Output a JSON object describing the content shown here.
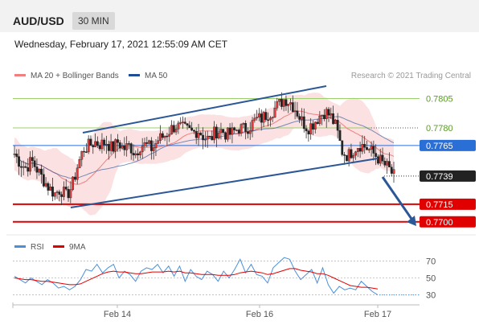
{
  "header": {
    "pair": "AUD/USD",
    "timeframe": "30 MIN"
  },
  "timestamp": "Wednesday, February 17, 2021 12:55:09 AM CET",
  "colors": {
    "candle_up": "#e33b3b",
    "ma20": "#f08080",
    "bollinger_fill": "#fadcdc",
    "ma50": "#1f4e99",
    "trend": "#2b5797",
    "support": "#e00000",
    "current": "#222222",
    "rsi": "#4a90d9",
    "rsi_ma": "#e00000",
    "grid_green": "#9bcf6b"
  },
  "chart_data": {
    "type": "candlestick",
    "title": "",
    "legend": {
      "ma20": "MA 20 + Bollinger Bands",
      "ma50": "MA 50",
      "credit": "Research © 2021 Trading Central"
    },
    "ylim": [
      0.7693,
      0.7817
    ],
    "x_ticks": [
      "Feb 14",
      "Feb 16",
      "Feb 17"
    ],
    "levels": [
      {
        "label": "0.7805",
        "value": 0.7805,
        "kind": "resistance"
      },
      {
        "label": "0.7780",
        "value": 0.778,
        "kind": "resistance"
      },
      {
        "label": "0.7765",
        "value": 0.7765,
        "kind": "pivot"
      },
      {
        "label": "0.7739",
        "value": 0.7739,
        "kind": "current"
      },
      {
        "label": "0.7715",
        "value": 0.7715,
        "kind": "support"
      },
      {
        "label": "0.7700",
        "value": 0.77,
        "kind": "support"
      }
    ],
    "close_path": [
      0.7758,
      0.775,
      0.7746,
      0.7752,
      0.7744,
      0.7736,
      0.7729,
      0.7724,
      0.7728,
      0.7722,
      0.773,
      0.7748,
      0.7762,
      0.7765,
      0.7768,
      0.7766,
      0.7768,
      0.7762,
      0.7768,
      0.7762,
      0.7765,
      0.7758,
      0.7766,
      0.7765,
      0.7762,
      0.777,
      0.7773,
      0.7778,
      0.7782,
      0.778,
      0.7778,
      0.7776,
      0.7778,
      0.7772,
      0.777,
      0.7777,
      0.7778,
      0.7774,
      0.7776,
      0.778,
      0.7779,
      0.7782,
      0.7787,
      0.7788,
      0.7792,
      0.7795,
      0.78,
      0.7805,
      0.7802,
      0.7795,
      0.7786,
      0.778,
      0.7784,
      0.779,
      0.7794,
      0.779,
      0.778,
      0.776,
      0.7756,
      0.7762,
      0.7766,
      0.7764,
      0.776,
      0.7756,
      0.775,
      0.7746,
      0.7739
    ],
    "rsi": {
      "legend": [
        "RSI",
        "9MA"
      ],
      "ylim": [
        22,
        78
      ],
      "ticks": [
        {
          "label": "70",
          "value": 70
        },
        {
          "label": "50",
          "value": 50
        },
        {
          "label": "30",
          "value": 30
        }
      ],
      "values": [
        52,
        48,
        44,
        50,
        46,
        42,
        48,
        44,
        38,
        40,
        36,
        40,
        48,
        60,
        58,
        66,
        56,
        62,
        66,
        50,
        58,
        54,
        46,
        58,
        62,
        60,
        66,
        56,
        64,
        52,
        64,
        46,
        60,
        52,
        48,
        58,
        54,
        46,
        58,
        50,
        60,
        72,
        56,
        66,
        54,
        52,
        44,
        62,
        68,
        74,
        72,
        58,
        48,
        54,
        60,
        44,
        62,
        42,
        32,
        40,
        36,
        38,
        36,
        46,
        40,
        34,
        30
      ],
      "ma": [
        50,
        49,
        48,
        48,
        47,
        46,
        46,
        45,
        44,
        43,
        42,
        42,
        43,
        46,
        49,
        52,
        55,
        57,
        58,
        57,
        57,
        56,
        55,
        55,
        56,
        57,
        57,
        57,
        58,
        57,
        58,
        56,
        56,
        55,
        54,
        54,
        54,
        53,
        53,
        53,
        54,
        56,
        57,
        58,
        57,
        56,
        54,
        55,
        57,
        59,
        61,
        61,
        59,
        58,
        57,
        55,
        55,
        53,
        50,
        47,
        44,
        41,
        40,
        39,
        39,
        38,
        37
      ]
    }
  }
}
